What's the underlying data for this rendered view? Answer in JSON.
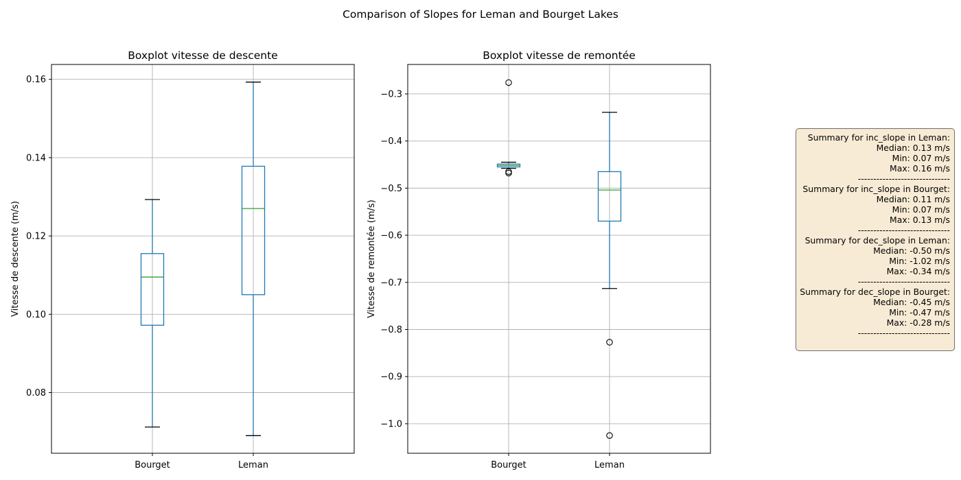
{
  "figure": {
    "suptitle": "Comparison of Slopes for Leman and Bourget Lakes"
  },
  "chart_data": [
    {
      "type": "box",
      "title": "Boxplot vitesse de descente",
      "xlabel": "",
      "ylabel": "Vitesse de descente (m/s)",
      "categories": [
        "Bourget",
        "Leman"
      ],
      "ylim": [
        0.0645,
        0.1638
      ],
      "yticks": [
        0.08,
        0.1,
        0.12,
        0.14,
        0.16
      ],
      "ytick_labels": [
        "0.08",
        "0.10",
        "0.12",
        "0.14",
        "0.16"
      ],
      "grid": true,
      "boxes": [
        {
          "category": "Bourget",
          "whisker_low": 0.0712,
          "q1": 0.0972,
          "median": 0.1095,
          "q3": 0.1155,
          "whisker_high": 0.1293,
          "outliers": []
        },
        {
          "category": "Leman",
          "whisker_low": 0.069,
          "q1": 0.105,
          "median": 0.127,
          "q3": 0.1378,
          "whisker_high": 0.1593,
          "outliers": []
        }
      ]
    },
    {
      "type": "box",
      "title": "Boxplot vitesse de remontée",
      "xlabel": "",
      "ylabel": "Vitesse de remontée (m/s)",
      "categories": [
        "Bourget",
        "Leman"
      ],
      "ylim": [
        -1.0627,
        -0.2375
      ],
      "yticks": [
        -1.0,
        -0.9,
        -0.8,
        -0.7,
        -0.6,
        -0.5,
        -0.4,
        -0.3
      ],
      "ytick_labels": [
        "−1.0",
        "−0.9",
        "−0.8",
        "−0.7",
        "−0.6",
        "−0.5",
        "−0.4",
        "−0.3"
      ],
      "grid": true,
      "boxes": [
        {
          "category": "Bourget",
          "whisker_low": -0.458,
          "q1": -0.455,
          "median": -0.452,
          "q3": -0.449,
          "whisker_high": -0.445,
          "outliers": [
            -0.276,
            -0.465,
            -0.468
          ]
        },
        {
          "category": "Leman",
          "whisker_low": -0.713,
          "q1": -0.57,
          "median": -0.504,
          "q3": -0.465,
          "whisker_high": -0.339,
          "outliers": [
            -0.827,
            -1.025
          ]
        }
      ]
    }
  ],
  "summary": {
    "lines": [
      "Summary for inc_slope in Leman:",
      "Median: 0.13 m/s",
      "Min: 0.07 m/s",
      "Max: 0.16 m/s",
      "------------------------------",
      "Summary for inc_slope in Bourget:",
      "Median: 0.11 m/s",
      "Min: 0.07 m/s",
      "Max: 0.13 m/s",
      "------------------------------",
      "Summary for dec_slope in Leman:",
      "Median: -0.50 m/s",
      "Min: -1.02 m/s",
      "Max: -0.34 m/s",
      "------------------------------",
      "Summary for dec_slope in Bourget:",
      "Median: -0.45 m/s",
      "Min: -0.47 m/s",
      "Max: -0.28 m/s",
      "------------------------------"
    ]
  },
  "colors": {
    "box": "#1f77b4",
    "median": "#2ca02c",
    "whisker_cap": "#000000",
    "grid": "#b0b0b0",
    "axes": "#000000",
    "summary_bg": "#f8ebd5",
    "summary_border": "#6e6e6e"
  }
}
